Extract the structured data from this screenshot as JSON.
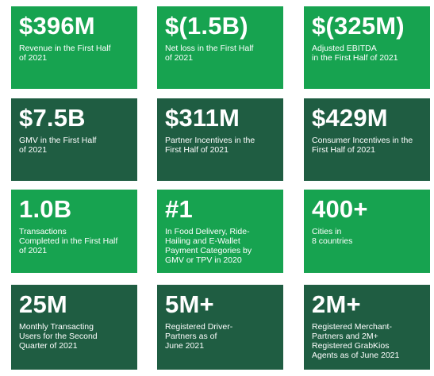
{
  "tiles": [
    {
      "value": "$396M",
      "label": "Revenue in the First Half\nof 2021"
    },
    {
      "value": "$(1.5B)",
      "label": "Net loss in the First Half\nof 2021"
    },
    {
      "value": "$(325M)",
      "label": "Adjusted EBITDA\nin the First Half of 2021"
    },
    {
      "value": "$7.5B",
      "label": "GMV in the First Half\nof 2021"
    },
    {
      "value": "$311M",
      "label": "Partner Incentives in the\nFirst Half of 2021"
    },
    {
      "value": "$429M",
      "label": "Consumer Incentives in the\nFirst Half of 2021"
    },
    {
      "value": "1.0B",
      "label": "Transactions\nCompleted in the First Half\nof 2021"
    },
    {
      "value": "#1",
      "label": "In Food Delivery, Ride-\nHailing and E-Wallet\nPayment Categories by\nGMV or TPV in 2020"
    },
    {
      "value": "400+",
      "label": "Cities in\n8 countries"
    },
    {
      "value": "25M",
      "label": "Monthly Transacting\nUsers for the Second\nQuarter of 2021"
    },
    {
      "value": "5M+",
      "label": "Registered Driver-\nPartners as of\nJune 2021"
    },
    {
      "value": "2M+",
      "label": "Registered Merchant-\nPartners and 2M+\nRegistered GrabKios\nAgents as of June 2021"
    }
  ],
  "colors": {
    "light_green": "#17a350",
    "dark_green": "#1f5d42",
    "text": "#ffffff"
  }
}
